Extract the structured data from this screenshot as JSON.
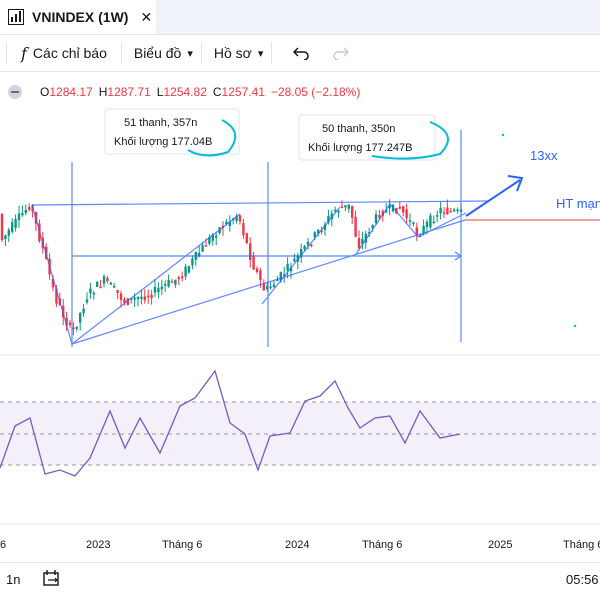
{
  "tab": {
    "title": "VNINDEX (1W)",
    "close": "✕"
  },
  "toolbar": {
    "indicators_label": "Các chỉ báo",
    "chart_label": "Biểu đồ",
    "profile_label": "Hồ sơ"
  },
  "ohlc": {
    "o_label": "O",
    "o_value": "1284.17",
    "h_label": "H",
    "h_value": "1287.71",
    "l_label": "L",
    "l_value": "1254.82",
    "c_label": "C",
    "c_value": "1257.41",
    "change": "−28.05 (−2.18%)"
  },
  "annotations": {
    "box1_line1": "51 thanh, 357n",
    "box1_line2": "Khối lượng 177.04B",
    "box2_line1": "50 thanh, 350n",
    "box2_line2": "Khối lượng 177.247B",
    "target_label": "13xx",
    "support_label": "HT mạn"
  },
  "xaxis": {
    "t1": "6",
    "t2": "2023",
    "t3": "Tháng 6",
    "t4": "2024",
    "t5": "Tháng 6",
    "t6": "2025",
    "t7": "Tháng 6"
  },
  "bottom": {
    "interval": "1n",
    "time": "05:56"
  },
  "colors": {
    "up": "#089981",
    "down": "#f23645",
    "drawing": "#2962ff",
    "annotation": "#00bcd4",
    "rsi": "#7e57c2"
  }
}
